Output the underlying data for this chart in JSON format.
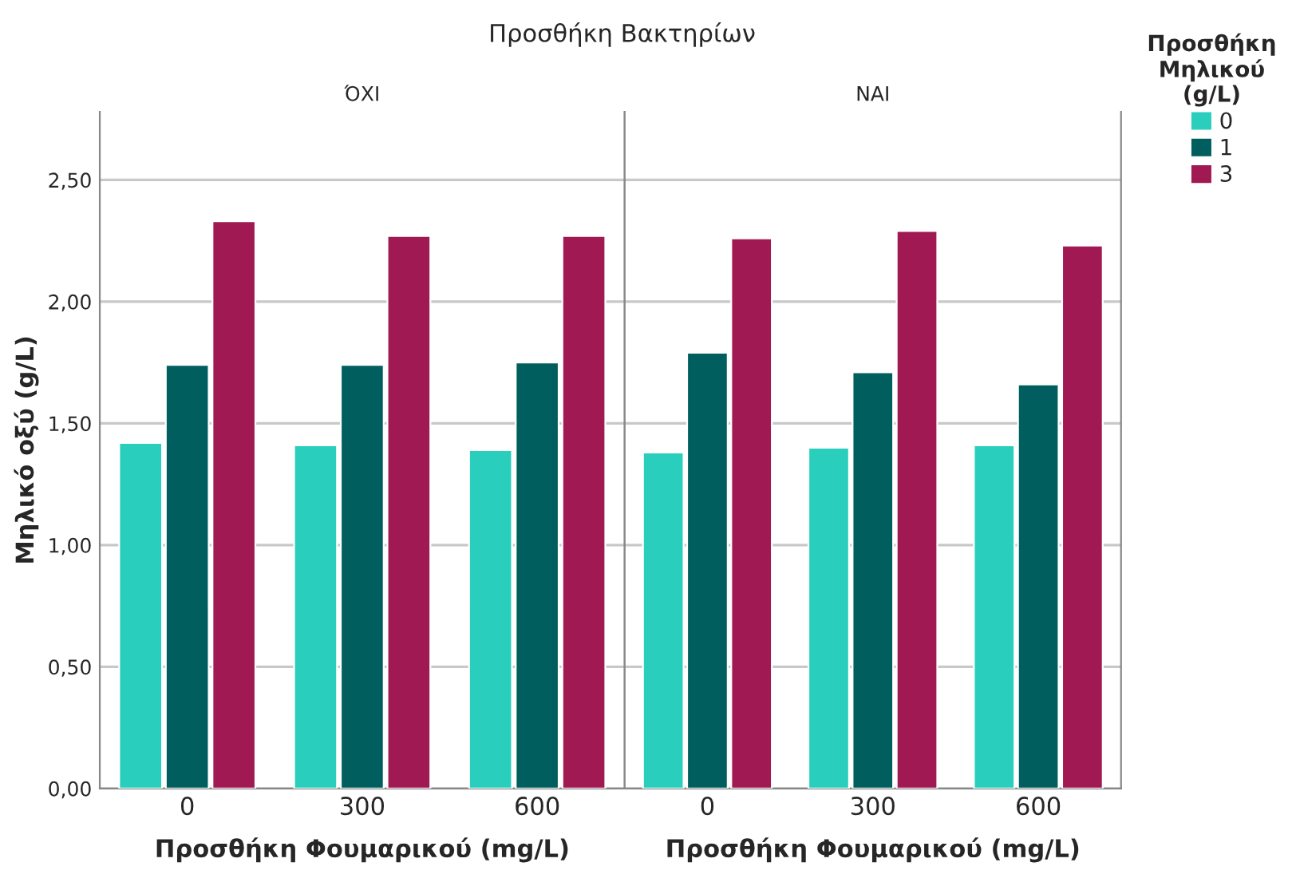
{
  "chart_data": [
    {
      "type": "bar",
      "title": "ΌΧΙ",
      "annotations": [
        "Προσθήκη Βακτηρίων"
      ],
      "xlabel": "Προσθήκη Φουμαρικού (mg/L)",
      "ylabel": "Μηλικό οξύ (g/L)",
      "categories": [
        "0",
        "300",
        "600"
      ],
      "series": [
        {
          "name": "0",
          "color": "#29cfbc",
          "values": [
            1.42,
            1.41,
            1.39
          ]
        },
        {
          "name": "1",
          "color": "#005e5e",
          "values": [
            1.74,
            1.74,
            1.75
          ]
        },
        {
          "name": "3",
          "color": "#a11952",
          "values": [
            2.33,
            2.27,
            2.27
          ]
        }
      ],
      "ylim": [
        0,
        2.78
      ],
      "yticks": [
        {
          "value": 0,
          "label": "0,00"
        },
        {
          "value": 0.5,
          "label": "0,50"
        },
        {
          "value": 1.0,
          "label": "1,00"
        },
        {
          "value": 1.5,
          "label": "1,50"
        },
        {
          "value": 2.0,
          "label": "2,00"
        },
        {
          "value": 2.5,
          "label": "2,50"
        }
      ],
      "grid": "y",
      "legend": "right",
      "legend_title": "Προσθήκη\nΜηλικού\n(g/L)"
    },
    {
      "type": "bar",
      "title": "ΝΑΙ",
      "xlabel": "Προσθήκη Φουμαρικού (mg/L)",
      "categories": [
        "0",
        "300",
        "600"
      ],
      "series": [
        {
          "name": "0",
          "color": "#29cfbc",
          "values": [
            1.38,
            1.4,
            1.41
          ]
        },
        {
          "name": "1",
          "color": "#005e5e",
          "values": [
            1.79,
            1.71,
            1.66
          ]
        },
        {
          "name": "3",
          "color": "#a11952",
          "values": [
            2.26,
            2.29,
            2.23
          ]
        }
      ],
      "ylim": [
        0,
        2.78
      ],
      "tick_labels": "x",
      "grid": "y",
      "legend": false
    }
  ]
}
